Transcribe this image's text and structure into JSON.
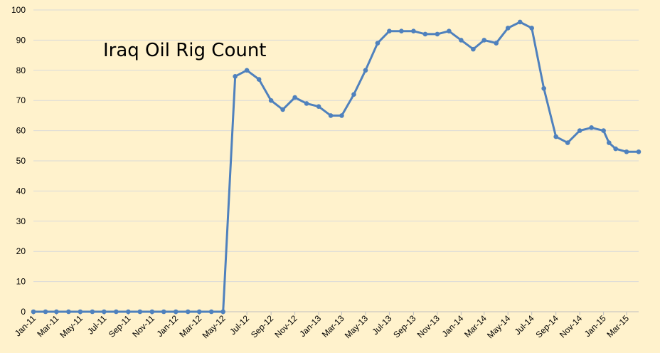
{
  "chart_data": {
    "type": "line",
    "title": "Iraq Oil Rig Count",
    "xlabel": "",
    "ylabel": "",
    "ylim": [
      0,
      100
    ],
    "yticks": [
      "0",
      "10",
      "20",
      "30",
      "40",
      "50",
      "60",
      "70",
      "80",
      "90",
      "100"
    ],
    "grid": true,
    "colors": {
      "background": "#FFF2CC",
      "line": "#4F81BD",
      "grid": "#D9D9D9",
      "axis": "#BFBFBF"
    },
    "xtick_labels": [
      "Jan-11",
      "Mar-11",
      "May-11",
      "Jul-11",
      "Sep-11",
      "Nov-11",
      "Jan-12",
      "Mar-12",
      "May-12",
      "Jul-12",
      "Sep-12",
      "Nov-12",
      "Jan-13",
      "Mar-13",
      "May-13",
      "Jul-13",
      "Sep-13",
      "Nov-13",
      "Jan-14",
      "Mar-14",
      "May-14",
      "Jul-14",
      "Sep-14",
      "Nov-14",
      "Jan-15",
      "Mar-15"
    ],
    "x": [
      "2011-01-01",
      "2011-02-01",
      "2011-03-01",
      "2011-04-01",
      "2011-05-01",
      "2011-06-01",
      "2011-07-01",
      "2011-08-01",
      "2011-09-01",
      "2011-10-01",
      "2011-11-01",
      "2011-12-01",
      "2012-01-01",
      "2012-02-01",
      "2012-03-01",
      "2012-04-01",
      "2012-05-01",
      "2012-06-01",
      "2012-07-01",
      "2012-08-01",
      "2012-09-01",
      "2012-10-01",
      "2012-11-01",
      "2012-12-01",
      "2013-01-01",
      "2013-02-01",
      "2013-03-01",
      "2013-04-01",
      "2013-05-01",
      "2013-06-01",
      "2013-07-01",
      "2013-08-01",
      "2013-09-01",
      "2013-10-01",
      "2013-11-01",
      "2013-12-01",
      "2014-01-01",
      "2014-02-01",
      "2014-03-01",
      "2014-04-01",
      "2014-05-01",
      "2014-06-01",
      "2014-07-01",
      "2014-08-01",
      "2014-09-01",
      "2014-10-01",
      "2014-11-01",
      "2014-12-01",
      "2015-01-01",
      "2015-01-15",
      "2015-02-01",
      "2015-03-01",
      "2015-04-01"
    ],
    "values": [
      0,
      0,
      0,
      0,
      0,
      0,
      0,
      0,
      0,
      0,
      0,
      0,
      0,
      0,
      0,
      0,
      0,
      78,
      80,
      77,
      70,
      67,
      71,
      69,
      68,
      65,
      65,
      72,
      80,
      89,
      93,
      93,
      93,
      92,
      92,
      93,
      90,
      87,
      90,
      89,
      94,
      96,
      94,
      74,
      58,
      56,
      60,
      61,
      60,
      56,
      54,
      53,
      53
    ]
  }
}
